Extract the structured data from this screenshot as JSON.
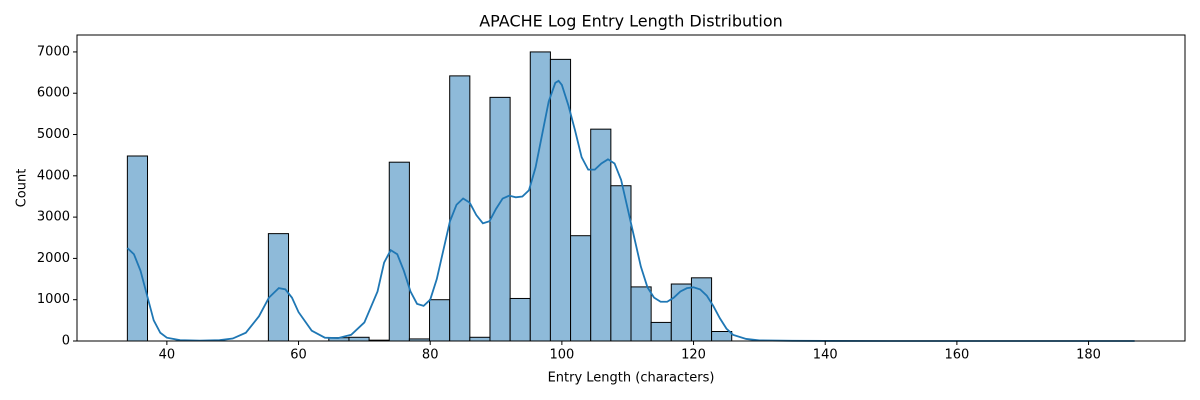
{
  "chart_data": {
    "type": "histogram",
    "title": "APACHE Log Entry Length Distribution",
    "x_label": "Entry Length (characters)",
    "y_label": "Count",
    "bins": [
      34,
      37.06,
      40.12,
      43.18,
      46.24,
      49.3,
      52.36,
      55.42,
      58.48,
      61.54,
      64.6,
      67.66,
      70.72,
      73.78,
      76.84,
      79.9,
      82.96,
      86.02,
      89.08,
      92.14,
      95.2,
      98.26,
      101.32,
      104.38,
      107.44,
      110.5,
      113.56,
      116.62,
      119.68,
      122.74,
      125.8,
      128.86,
      131.92,
      134.98,
      138.04,
      141.1,
      144.16,
      147.22,
      150.28,
      153.34,
      156.4,
      159.46,
      162.52,
      165.58,
      168.64,
      171.7,
      174.76,
      177.82,
      180.88,
      183.94,
      187
    ],
    "counts": [
      4480,
      0,
      0,
      0,
      0,
      0,
      0,
      2600,
      0,
      0,
      80,
      90,
      20,
      4330,
      50,
      1000,
      6420,
      90,
      5900,
      1030,
      7000,
      6820,
      2550,
      5130,
      3760,
      1310,
      450,
      1380,
      1530,
      230,
      0,
      0,
      0,
      0,
      0,
      0,
      0,
      0,
      0,
      0,
      0,
      0,
      0,
      0,
      0,
      0,
      0,
      0,
      0,
      0
    ],
    "color": "#8ebad9",
    "edge_color": "#000000",
    "kde": {
      "color": "#1f77b4",
      "x": [
        34,
        35,
        36,
        37,
        38,
        39,
        40,
        42,
        45,
        48,
        50,
        52,
        54,
        55.5,
        57,
        58,
        59,
        60,
        62,
        64,
        66,
        68,
        70,
        72,
        73,
        74,
        75,
        76,
        77,
        78,
        79,
        80,
        81,
        82,
        83,
        84,
        85,
        86,
        87,
        88,
        89,
        90,
        91,
        92,
        93,
        94,
        95,
        96,
        97,
        98,
        99,
        99.5,
        100,
        101,
        102,
        103,
        104,
        105,
        106,
        107,
        108,
        109,
        110,
        111,
        112,
        113,
        114,
        115,
        116,
        117,
        118,
        119,
        120,
        121,
        122,
        123,
        124,
        125,
        126,
        128,
        130,
        135,
        140,
        150,
        160,
        170,
        180,
        187
      ],
      "values": [
        2250,
        2100,
        1700,
        1100,
        500,
        200,
        80,
        20,
        10,
        20,
        60,
        200,
        600,
        1050,
        1280,
        1250,
        1050,
        700,
        250,
        80,
        70,
        150,
        450,
        1200,
        1900,
        2200,
        2100,
        1700,
        1200,
        900,
        850,
        1000,
        1500,
        2200,
        2900,
        3300,
        3450,
        3350,
        3050,
        2850,
        2900,
        3200,
        3450,
        3520,
        3480,
        3500,
        3650,
        4200,
        5000,
        5800,
        6250,
        6300,
        6200,
        5700,
        5100,
        4450,
        4150,
        4150,
        4300,
        4400,
        4300,
        3900,
        3200,
        2500,
        1800,
        1300,
        1050,
        950,
        950,
        1050,
        1200,
        1280,
        1300,
        1250,
        1100,
        850,
        550,
        300,
        150,
        50,
        15,
        5,
        2,
        0,
        0,
        0,
        0,
        0
      ]
    },
    "xlim": [
      26.35,
      194.65
    ],
    "ylim": [
      0,
      7410
    ],
    "xticks": [
      40,
      60,
      80,
      100,
      120,
      140,
      160,
      180
    ],
    "yticks": [
      0,
      1000,
      2000,
      3000,
      4000,
      5000,
      6000,
      7000
    ],
    "grid": false
  }
}
